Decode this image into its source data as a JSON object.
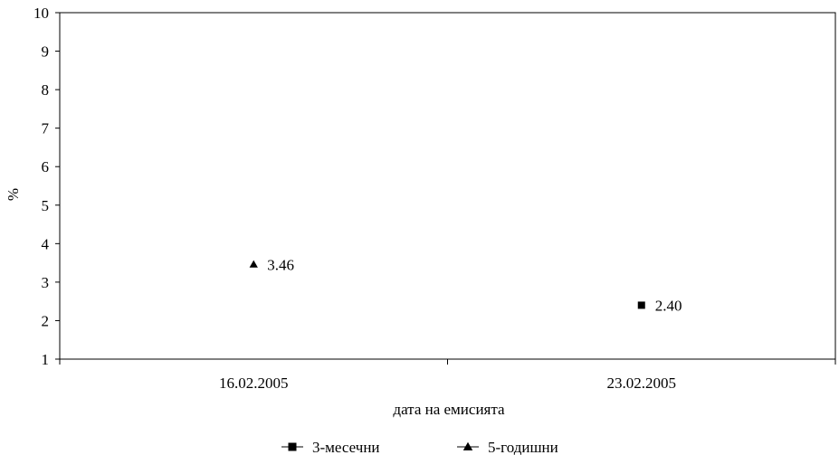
{
  "chart_data": {
    "type": "scatter",
    "title": "",
    "xlabel": "дата на емисията",
    "ylabel": "%",
    "categories": [
      "16.02.2005",
      "23.02.2005"
    ],
    "ylim": [
      1,
      10
    ],
    "yticks": [
      "1",
      "2",
      "3",
      "4",
      "5",
      "6",
      "7",
      "8",
      "9",
      "10"
    ],
    "grid": false,
    "legend_position": "bottom",
    "series": [
      {
        "name": "3-месечни",
        "marker": "square",
        "color": "#000000",
        "values": [
          null,
          2.4
        ],
        "labels": [
          null,
          "2.40"
        ]
      },
      {
        "name": "5-годишни",
        "marker": "triangle",
        "color": "#000000",
        "values": [
          3.46,
          null
        ],
        "labels": [
          "3.46",
          null
        ]
      }
    ]
  }
}
